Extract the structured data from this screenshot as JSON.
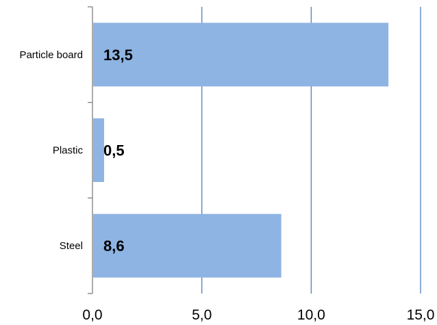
{
  "chart_data": {
    "type": "bar",
    "orientation": "horizontal",
    "categories": [
      "Particle board",
      "Plastic",
      "Steel"
    ],
    "values": [
      13.5,
      0.5,
      8.6
    ],
    "data_labels": [
      "13,5",
      "0,5",
      "8,6"
    ],
    "x_ticks": [
      "0,0",
      "5,0",
      "10,0",
      "15,0"
    ],
    "xlim": [
      0,
      15
    ],
    "grid": "vertical",
    "legend": "none",
    "colors": {
      "bar": "#8eb4e3",
      "gridline": "#4f81bd",
      "axis": "#808080"
    }
  }
}
